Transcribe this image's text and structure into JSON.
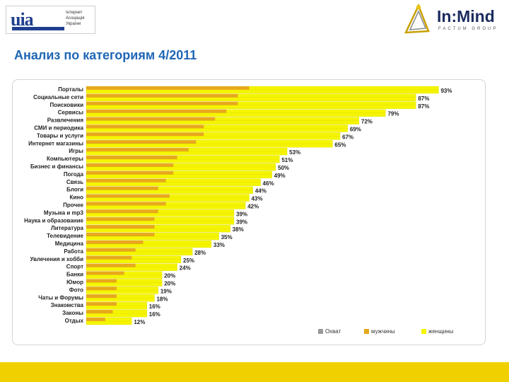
{
  "header": {
    "uia_logo": {
      "mark": "uia",
      "lines": [
        "Інтернет",
        "Асоціація",
        "України"
      ]
    },
    "inmind_logo": {
      "name": "In:Mind",
      "tagline": "FACTUM GROUP"
    }
  },
  "page": {
    "title": "Анализ по категориям 4/2011"
  },
  "colors": {
    "total": "#f5f500",
    "men": "#e8a81c",
    "women": "#f5f500",
    "title": "#1f66b5",
    "footer": "#f1d000"
  },
  "chart_data": {
    "type": "bar",
    "orientation": "horizontal",
    "title": "Анализ по категориям 4/2011",
    "categories": [
      "Порталы",
      "Социальные сети",
      "Поисковики",
      "Сервисы",
      "Развлечения",
      "СМИ и периодика",
      "Товары и услуги",
      "Интернет магазины",
      "Игры",
      "Компьютеры",
      "Бизнес и финансы",
      "Погода",
      "Связь",
      "Блоги",
      "Кино",
      "Прочее",
      "Музыка и mp3",
      "Наука и образование",
      "Литература",
      "Телевидение",
      "Медицина",
      "Работа",
      "Увлечения и хобби",
      "Спорт",
      "Банки",
      "Юмор",
      "Фото",
      "Чаты и Форумы",
      "Знакомства",
      "Законы",
      "Отдых"
    ],
    "series": [
      {
        "name": "Охват",
        "values": [
          93,
          87,
          87,
          79,
          72,
          69,
          67,
          65,
          53,
          51,
          50,
          49,
          46,
          44,
          43,
          42,
          39,
          39,
          38,
          35,
          33,
          28,
          25,
          24,
          20,
          20,
          19,
          18,
          16,
          16,
          12
        ]
      },
      {
        "name": "мужчины",
        "values": [
          43,
          40,
          40,
          37,
          34,
          31,
          31,
          29,
          27,
          24,
          23,
          23,
          21,
          19,
          22,
          21,
          19,
          18,
          18,
          18,
          15,
          13,
          12,
          13,
          10,
          8,
          8,
          8,
          8,
          7,
          5
        ]
      },
      {
        "name": "женщины",
        "values": [
          93,
          87,
          87,
          79,
          72,
          69,
          67,
          65,
          53,
          51,
          50,
          49,
          46,
          44,
          43,
          42,
          39,
          39,
          38,
          35,
          33,
          28,
          25,
          24,
          20,
          20,
          19,
          18,
          16,
          16,
          12
        ]
      }
    ],
    "value_labels": [
      "93%",
      "87%",
      "87%",
      "79%",
      "72%",
      "69%",
      "67%",
      "65%",
      "53%",
      "51%",
      "50%",
      "49%",
      "46%",
      "44%",
      "43%",
      "42%",
      "39%",
      "39%",
      "38%",
      "35%",
      "33%",
      "28%",
      "25%",
      "24%",
      "20%",
      "20%",
      "19%",
      "18%",
      "16%",
      "16%",
      "12%"
    ],
    "xlim": [
      0,
      100
    ],
    "legend": {
      "position": "bottom-right",
      "labels": [
        "Охват",
        "мужчины",
        "женщины"
      ]
    }
  }
}
